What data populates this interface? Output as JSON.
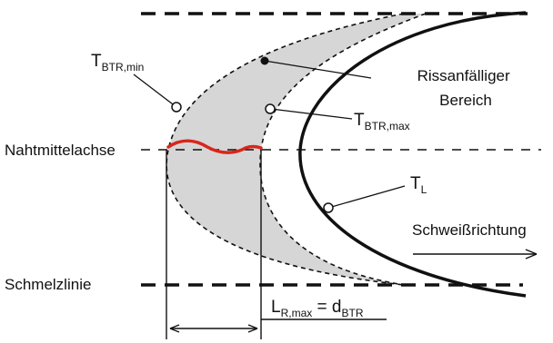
{
  "labels": {
    "t_btr_min": {
      "main": "T",
      "sub": "BTR,min"
    },
    "t_btr_max": {
      "main": "T",
      "sub": "BTR,max"
    },
    "t_l": {
      "main": "T",
      "sub": "L"
    },
    "crack_region_line1": "Rissanfälliger",
    "crack_region_line2": "Bereich",
    "weld_axis": "Nahtmittelachse",
    "fusion_line": "Schmelzlinie",
    "weld_direction": "Schweißrichtung",
    "length_main": "L",
    "length_sub": "R,max",
    "length_eq": " = d",
    "length_sub2": "BTR"
  },
  "colors": {
    "region_fill": "#d6d6d6",
    "crack_line": "#d9261c",
    "stroke": "#111111"
  }
}
